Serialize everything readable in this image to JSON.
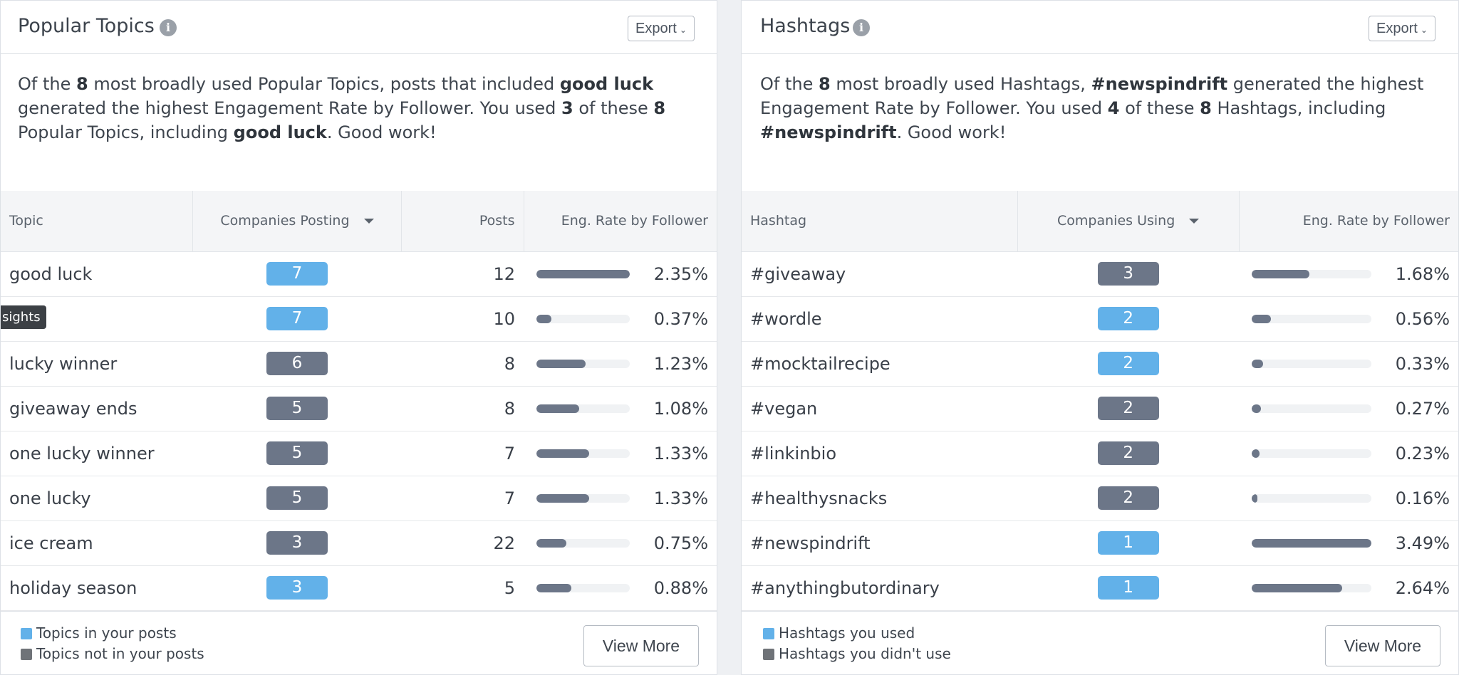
{
  "colors": {
    "used": "#62b1e9",
    "unused": "#6c7688",
    "bar": "#6c7688"
  },
  "topics": {
    "title": "Popular Topics",
    "export_label": "Export",
    "summary": {
      "p1": "Of the ",
      "n1": "8",
      "p2": " most broadly used Popular Topics, posts that included ",
      "top": "good luck",
      "p3": " generated the highest Engagement Rate by Follower. You used ",
      "n2": "3",
      "p4": " of these ",
      "n3": "8",
      "p5": " Popular Topics, including ",
      "top2": "good luck",
      "p6": ". Good work!"
    },
    "columns": {
      "topic": "Topic",
      "companies": "Companies Posting",
      "posts": "Posts",
      "rate": "Eng. Rate by Follower"
    },
    "rows": [
      {
        "topic": "good luck",
        "companies": "7",
        "used": true,
        "posts": "12",
        "rate": "2.35%",
        "fill": 1.0
      },
      {
        "topic": "",
        "companies": "7",
        "used": true,
        "posts": "10",
        "rate": "0.37%",
        "fill": 0.157
      },
      {
        "topic": "lucky winner",
        "companies": "6",
        "used": false,
        "posts": "8",
        "rate": "1.23%",
        "fill": 0.523
      },
      {
        "topic": "giveaway ends",
        "companies": "5",
        "used": false,
        "posts": "8",
        "rate": "1.08%",
        "fill": 0.46
      },
      {
        "topic": "one lucky winner",
        "companies": "5",
        "used": false,
        "posts": "7",
        "rate": "1.33%",
        "fill": 0.566
      },
      {
        "topic": "one lucky",
        "companies": "5",
        "used": false,
        "posts": "7",
        "rate": "1.33%",
        "fill": 0.566
      },
      {
        "topic": "ice cream",
        "companies": "3",
        "used": false,
        "posts": "22",
        "rate": "0.75%",
        "fill": 0.319
      },
      {
        "topic": "holiday season",
        "companies": "3",
        "used": true,
        "posts": "5",
        "rate": "0.88%",
        "fill": 0.374
      }
    ],
    "tooltip": "sights",
    "legend": {
      "used": "Topics in your posts",
      "unused": "Topics not in your posts"
    },
    "view_more": "View More"
  },
  "hashtags": {
    "title": "Hashtags",
    "export_label": "Export",
    "summary": {
      "p1": "Of the ",
      "n1": "8",
      "p2": " most broadly used Hashtags, ",
      "top": "#newspindrift",
      "p3": " generated the highest Engagement Rate by Follower. You used ",
      "n2": "4",
      "p4": " of these ",
      "n3": "8",
      "p5": " Hashtags, including ",
      "top2": "#newspindrift",
      "p6": ". Good work!"
    },
    "columns": {
      "hashtag": "Hashtag",
      "companies": "Companies Using",
      "rate": "Eng. Rate by Follower"
    },
    "rows": [
      {
        "tag": "#giveaway",
        "companies": "3",
        "used": false,
        "rate": "1.68%",
        "fill": 0.481
      },
      {
        "tag": "#wordle",
        "companies": "2",
        "used": true,
        "rate": "0.56%",
        "fill": 0.16
      },
      {
        "tag": "#mocktailrecipe",
        "companies": "2",
        "used": true,
        "rate": "0.33%",
        "fill": 0.095
      },
      {
        "tag": "#vegan",
        "companies": "2",
        "used": false,
        "rate": "0.27%",
        "fill": 0.077
      },
      {
        "tag": "#linkinbio",
        "companies": "2",
        "used": false,
        "rate": "0.23%",
        "fill": 0.066
      },
      {
        "tag": "#healthysnacks",
        "companies": "2",
        "used": false,
        "rate": "0.16%",
        "fill": 0.046
      },
      {
        "tag": "#newspindrift",
        "companies": "1",
        "used": true,
        "rate": "3.49%",
        "fill": 1.0
      },
      {
        "tag": "#anythingbutordinary",
        "companies": "1",
        "used": true,
        "rate": "2.64%",
        "fill": 0.756
      }
    ],
    "legend": {
      "used": "Hashtags you used",
      "unused": "Hashtags you didn't use"
    },
    "view_more": "View More"
  }
}
